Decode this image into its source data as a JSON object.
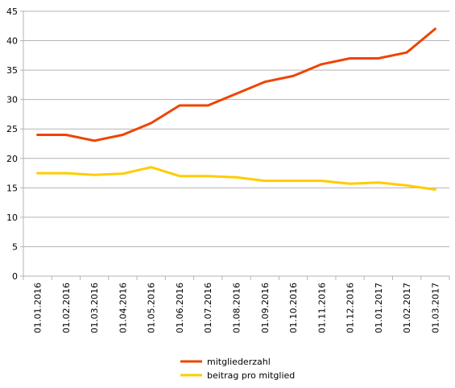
{
  "chart_data": {
    "type": "line",
    "title": "",
    "xlabel": "",
    "ylabel": "",
    "ylim": [
      0,
      45
    ],
    "yticks": [
      0,
      5,
      10,
      15,
      20,
      25,
      30,
      35,
      40,
      45
    ],
    "grid": "horizontal",
    "legend_position": "bottom",
    "categories": [
      "01.01.2016",
      "01.02.2016",
      "01.03.2016",
      "01.04.2016",
      "01.05.2016",
      "01.06.2016",
      "01.07.2016",
      "01.08.2016",
      "01.09.2016",
      "01.10.2016",
      "01.11.2016",
      "01.12.2016",
      "01.01.2017",
      "01.02.2017",
      "01.03.2017"
    ],
    "series": [
      {
        "name": "mitgliederzahl",
        "color": "#ee4400",
        "values": [
          24,
          24,
          23,
          24,
          26,
          29,
          29,
          31,
          33,
          34,
          36,
          37,
          37,
          38,
          42
        ]
      },
      {
        "name": "beitrag  pro  mitglied",
        "color": "#ffcc00",
        "values": [
          17.5,
          17.5,
          17.2,
          17.4,
          18.5,
          17,
          17,
          16.8,
          16.2,
          16.2,
          16.2,
          15.7,
          15.9,
          15.4,
          14.7
        ]
      }
    ]
  }
}
